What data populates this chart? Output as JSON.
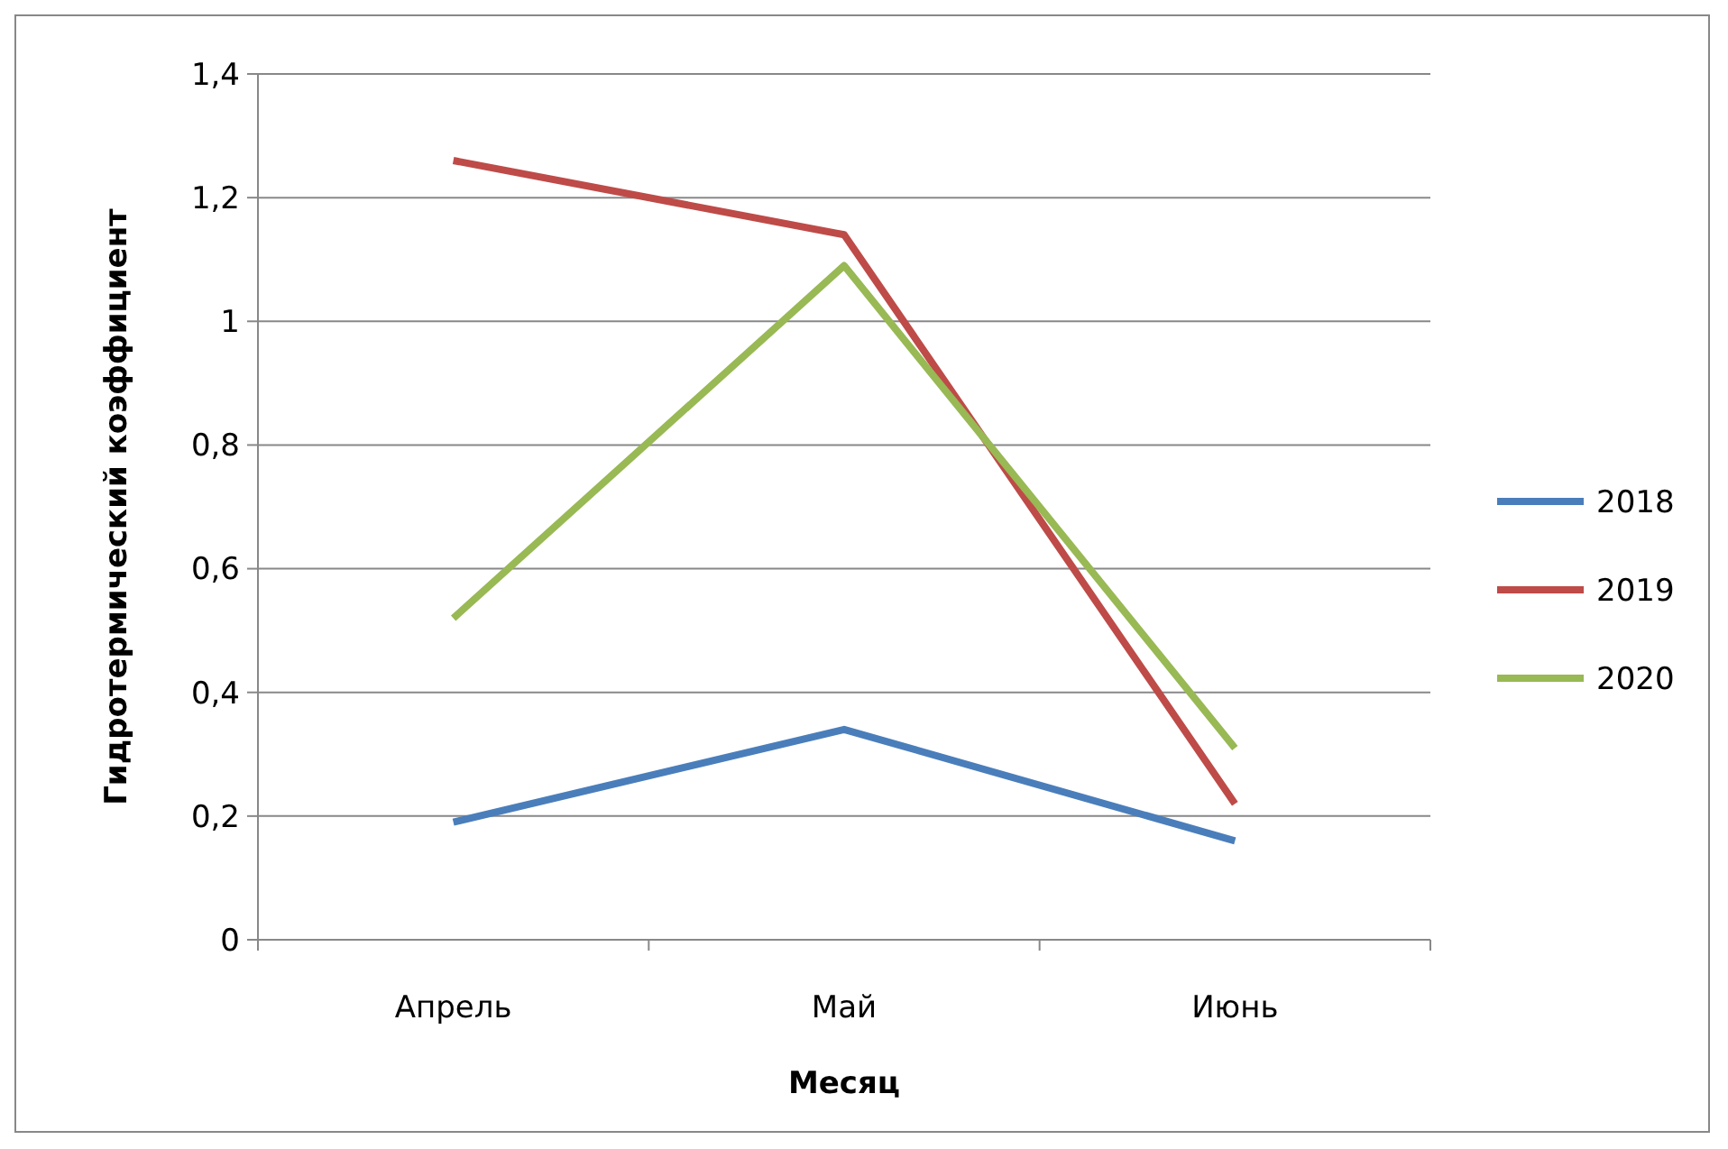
{
  "chart_data": {
    "type": "line",
    "xlabel": "Месяц",
    "ylabel": "Гидротермический коэффициент",
    "categories": [
      "Апрель",
      "Май",
      "Июнь"
    ],
    "series": [
      {
        "name": "2018",
        "color": "#4a7ebb",
        "values": [
          0.19,
          0.34,
          0.16
        ]
      },
      {
        "name": "2019",
        "color": "#be4b48",
        "values": [
          1.26,
          1.14,
          0.22
        ]
      },
      {
        "name": "2020",
        "color": "#98b954",
        "values": [
          0.52,
          1.09,
          0.31
        ]
      }
    ],
    "ylim": [
      0,
      1.4
    ],
    "yticks": [
      {
        "value": 0,
        "label": "0"
      },
      {
        "value": 0.2,
        "label": "0,2"
      },
      {
        "value": 0.4,
        "label": "0,4"
      },
      {
        "value": 0.6,
        "label": "0,6"
      },
      {
        "value": 0.8,
        "label": "0,8"
      },
      {
        "value": 1,
        "label": "1"
      },
      {
        "value": 1.2,
        "label": "1,2"
      },
      {
        "value": 1.4,
        "label": "1,4"
      }
    ],
    "grid": "y",
    "legend": "right",
    "marker": "none",
    "line_style": "solid"
  }
}
